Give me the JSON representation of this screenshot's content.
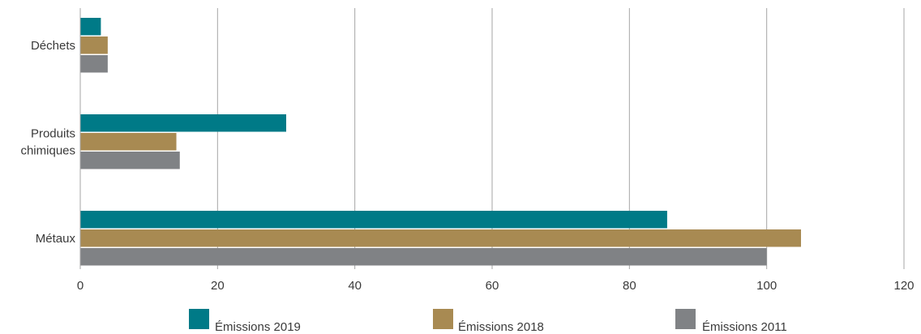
{
  "chart_data": {
    "type": "bar",
    "orientation": "horizontal",
    "categories": [
      [
        "Déchets"
      ],
      [
        "Produits",
        "chimiques"
      ],
      [
        "Métaux"
      ]
    ],
    "series": [
      {
        "name": "Émissions 2019",
        "color": "#007A87",
        "values": [
          3,
          30,
          85.5
        ]
      },
      {
        "name": "Émissions 2018",
        "color": "#A88A52",
        "values": [
          4,
          14,
          105
        ]
      },
      {
        "name": "Émissions 2011",
        "color": "#808285",
        "values": [
          4,
          14.5,
          100
        ]
      }
    ],
    "xlim": [
      0,
      120
    ],
    "xticks": [
      0,
      20,
      40,
      60,
      80,
      100,
      120
    ],
    "grid": true,
    "legend_position": "bottom"
  }
}
